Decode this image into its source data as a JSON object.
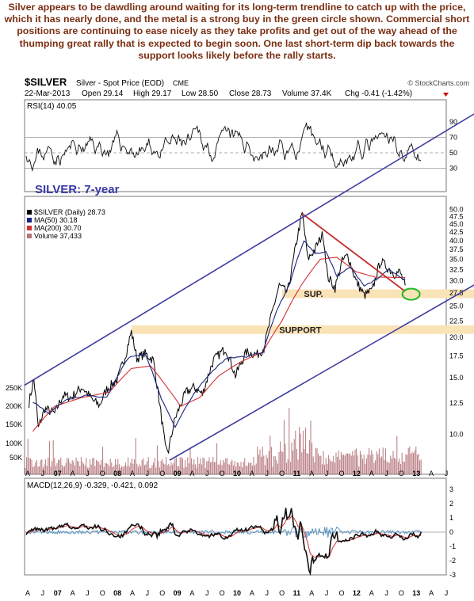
{
  "commentary": "Silver appears to be dawdling around waiting for its long-term trendline to catch up with the price, which it has nearly done, and the metal is a strong buy in the green circle shown. Commercial short positions are continuing to ease nicely as they take profits and get out of the way ahead of the thumping great rally that is expected to begin soon. One last short-term dip back towards the support looks likely before the rally starts.",
  "header": {
    "symbol": "$SILVER",
    "name": "Silver - Spot Price (EOD)",
    "exchange": "CME",
    "brand": "© StockCharts.com",
    "date": "22-Mar-2013",
    "open": "Open 29.14",
    "high": "High 29.17",
    "low": "Low 28.50",
    "close": "Close 28.73",
    "volume": "Volume 37.4K",
    "change": "Chg -0.41 (-1.42%)"
  },
  "colors": {
    "price": "#000000",
    "ma50": "#1a237e",
    "ma200": "#d32f2f",
    "volume": "#b5767b",
    "trendline": "#3c3ca0",
    "support_band": "#fbe3b8",
    "annotation_red": "#c62828",
    "target_circle": "#22b922",
    "macd_signal": "#d32f2f",
    "macd_hist": "#4a8bbd"
  },
  "chart_data": [
    {
      "type": "line",
      "panel": "RSI",
      "title": "RSI(14) 40.05",
      "ylim": [
        0,
        100
      ],
      "yticks": [
        30,
        50,
        70,
        90
      ],
      "levels": [
        30,
        50,
        70
      ]
    },
    {
      "type": "line",
      "panel": "price",
      "label": "SILVER: 7-year",
      "scale": "log",
      "ylim": [
        7.5,
        51
      ],
      "yticks": [
        "50.0",
        "47.5",
        "45.0",
        "42.5",
        "40.0",
        "37.5",
        "35.0",
        "32.5",
        "30.0",
        "27.5",
        "25.0",
        "22.5",
        "20.0",
        "17.5",
        "15.0",
        "12.5",
        "10.0"
      ],
      "volume_ticks": [
        "250K",
        "200K",
        "150K",
        "100K",
        "50K"
      ],
      "legend": [
        "$SILVER (Daily) 28.73",
        "MA(50) 30.18",
        "MA(200) 30.70",
        "Volume 37,433"
      ],
      "annotations": [
        {
          "text": "SUP.",
          "range": [
            26.5,
            28.2
          ]
        },
        {
          "text": "SUPPORT",
          "range": [
            20.5,
            21.8
          ]
        }
      ],
      "price_path": [
        [
          2006.33,
          12.5
        ],
        [
          2006.42,
          14.8
        ],
        [
          2006.5,
          10.4
        ],
        [
          2006.62,
          12.0
        ],
        [
          2006.8,
          11.6
        ],
        [
          2006.95,
          13.2
        ],
        [
          2007.1,
          13.0
        ],
        [
          2007.3,
          14.0
        ],
        [
          2007.5,
          12.7
        ],
        [
          2007.62,
          12.3
        ],
        [
          2007.75,
          13.8
        ],
        [
          2007.95,
          14.8
        ],
        [
          2008.1,
          17.8
        ],
        [
          2008.2,
          20.8
        ],
        [
          2008.3,
          17.2
        ],
        [
          2008.45,
          17.8
        ],
        [
          2008.6,
          17.0
        ],
        [
          2008.72,
          12.2
        ],
        [
          2008.82,
          9.0
        ],
        [
          2008.88,
          8.9
        ],
        [
          2009.0,
          11.2
        ],
        [
          2009.2,
          13.5
        ],
        [
          2009.35,
          14.0
        ],
        [
          2009.5,
          13.3
        ],
        [
          2009.7,
          17.0
        ],
        [
          2009.92,
          18.5
        ],
        [
          2010.1,
          15.2
        ],
        [
          2010.3,
          18.0
        ],
        [
          2010.5,
          17.7
        ],
        [
          2010.62,
          18.5
        ],
        [
          2010.75,
          23.0
        ],
        [
          2010.9,
          29.0
        ],
        [
          2011.05,
          27.5
        ],
        [
          2011.15,
          34.0
        ],
        [
          2011.32,
          48.5
        ],
        [
          2011.42,
          35.0
        ],
        [
          2011.55,
          37.5
        ],
        [
          2011.7,
          42.0
        ],
        [
          2011.78,
          31.0
        ],
        [
          2011.92,
          28.5
        ],
        [
          2012.05,
          34.5
        ],
        [
          2012.15,
          36.0
        ],
        [
          2012.3,
          30.0
        ],
        [
          2012.45,
          27.0
        ],
        [
          2012.6,
          28.0
        ],
        [
          2012.75,
          34.5
        ],
        [
          2012.88,
          33.0
        ],
        [
          2013.0,
          31.5
        ],
        [
          2013.1,
          32.0
        ],
        [
          2013.2,
          29.0
        ]
      ],
      "ma50_path": [
        [
          2006.4,
          12.6
        ],
        [
          2006.7,
          11.6
        ],
        [
          2007.0,
          12.8
        ],
        [
          2007.4,
          13.2
        ],
        [
          2007.75,
          13.0
        ],
        [
          2008.15,
          17.3
        ],
        [
          2008.45,
          17.8
        ],
        [
          2008.75,
          12.8
        ],
        [
          2009.0,
          10.5
        ],
        [
          2009.35,
          13.4
        ],
        [
          2009.65,
          15.5
        ],
        [
          2009.95,
          17.3
        ],
        [
          2010.3,
          17.4
        ],
        [
          2010.6,
          18.0
        ],
        [
          2010.85,
          24.0
        ],
        [
          2011.1,
          29.5
        ],
        [
          2011.35,
          40.0
        ],
        [
          2011.55,
          36.5
        ],
        [
          2011.75,
          37.0
        ],
        [
          2011.95,
          31.0
        ],
        [
          2012.2,
          33.0
        ],
        [
          2012.45,
          28.8
        ],
        [
          2012.7,
          30.5
        ],
        [
          2012.9,
          32.5
        ],
        [
          2013.2,
          30.18
        ]
      ],
      "ma200_path": [
        [
          2006.4,
          10.2
        ],
        [
          2006.8,
          12.2
        ],
        [
          2007.3,
          13.0
        ],
        [
          2007.8,
          13.5
        ],
        [
          2008.2,
          16.0
        ],
        [
          2008.55,
          16.3
        ],
        [
          2008.85,
          14.0
        ],
        [
          2009.1,
          12.2
        ],
        [
          2009.45,
          13.0
        ],
        [
          2009.8,
          15.2
        ],
        [
          2010.2,
          16.8
        ],
        [
          2010.6,
          18.0
        ],
        [
          2010.95,
          22.5
        ],
        [
          2011.3,
          29.0
        ],
        [
          2011.65,
          35.0
        ],
        [
          2011.95,
          35.5
        ],
        [
          2012.3,
          32.0
        ],
        [
          2012.65,
          30.8
        ],
        [
          2013.2,
          30.7
        ]
      ],
      "upper_trendline": [
        [
          2006.25,
          14.2
        ],
        [
          2013.95,
          96.0
        ]
      ],
      "lower_trendline": [
        [
          2008.9,
          8.3
        ],
        [
          2013.95,
          31.5
        ]
      ],
      "downtrend_line": [
        [
          2011.32,
          48.5
        ],
        [
          2013.2,
          27.8
        ]
      ],
      "target_circle": [
        2013.25,
        27.4
      ]
    },
    {
      "type": "line",
      "panel": "MACD",
      "title": "MACD(12,26,9) -0.329, -0.421, 0.092",
      "ylim": [
        -3,
        3
      ],
      "yticks": [
        "3",
        "2",
        "1",
        "0",
        "-1",
        "-2",
        "-3"
      ]
    }
  ],
  "x_axis_labels": [
    "A",
    "J",
    "07",
    "A",
    "J",
    "O",
    "08",
    "A",
    "J",
    "O",
    "09",
    "A",
    "J",
    "O",
    "10",
    "A",
    "J",
    "O",
    "11",
    "A",
    "J",
    "O",
    "12",
    "A",
    "J",
    "O",
    "13",
    "A",
    "J"
  ]
}
